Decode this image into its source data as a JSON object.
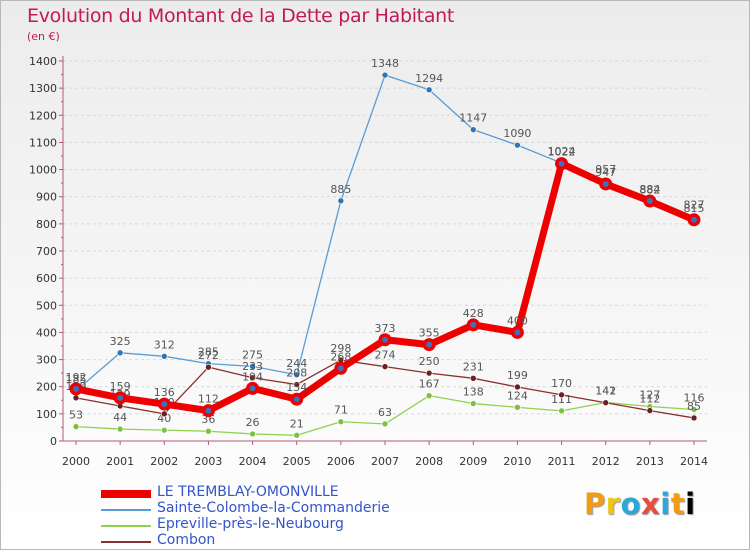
{
  "title": "Evolution du Montant de la Dette par Habitant",
  "unit": "(en €)",
  "logo": "Proxiti",
  "colors": {
    "axis": "#b05a7a",
    "grid": "#d8d8d8",
    "tick_text": "#333333",
    "value_text": "#555555"
  },
  "chart_data": {
    "type": "line",
    "title": "Evolution du Montant de la Dette par Habitant",
    "ylabel": "(en €)",
    "xlabel": "",
    "x": [
      "2000",
      "2001",
      "2002",
      "2003",
      "2004",
      "2005",
      "2006",
      "2007",
      "2008",
      "2009",
      "2010",
      "2011",
      "2012",
      "2013",
      "2014"
    ],
    "ylim": [
      0,
      1400
    ],
    "yticks": [
      0,
      100,
      200,
      300,
      400,
      500,
      600,
      700,
      800,
      900,
      1000,
      1100,
      1200,
      1300,
      1400
    ],
    "grid": "horizontal dashed",
    "legend": "bottom-left",
    "series": [
      {
        "name": "Sainte-Colombe-la-Commanderie",
        "color": "#5b9bd5",
        "dot": "#2e75b6",
        "values": [
          185,
          325,
          312,
          285,
          275,
          244,
          885,
          1348,
          1294,
          1147,
          1090,
          1024,
          957,
          882,
          827
        ]
      },
      {
        "name": "Epreville-près-le-Neubourg",
        "color": "#92d050",
        "dot": "#7cc242",
        "values": [
          53,
          44,
          40,
          36,
          26,
          21,
          71,
          63,
          167,
          138,
          124,
          111,
          142,
          127,
          116
        ]
      },
      {
        "name": "Combon",
        "color": "#8b2e2e",
        "dot": "#6b1f1f",
        "values": [
          159,
          129,
          100,
          272,
          233,
          208,
          298,
          274,
          250,
          231,
          199,
          170,
          141,
          112,
          85
        ]
      },
      {
        "name": "LE TREMBLAY-OMONVILLE",
        "color": "#ee0000",
        "dot": "#3f6fbf",
        "values": [
          192,
          159,
          136,
          112,
          194,
          154,
          268,
          373,
          355,
          428,
          400,
          1022,
          947,
          884,
          815
        ]
      }
    ]
  },
  "legend": [
    {
      "label": "LE TREMBLAY-OMONVILLE",
      "color": "#ee0000",
      "width": 8
    },
    {
      "label": "Sainte-Colombe-la-Commanderie",
      "color": "#5b9bd5",
      "width": 2
    },
    {
      "label": "Epreville-près-le-Neubourg",
      "color": "#92d050",
      "width": 2
    },
    {
      "label": "Combon",
      "color": "#8b2e2e",
      "width": 2
    }
  ]
}
